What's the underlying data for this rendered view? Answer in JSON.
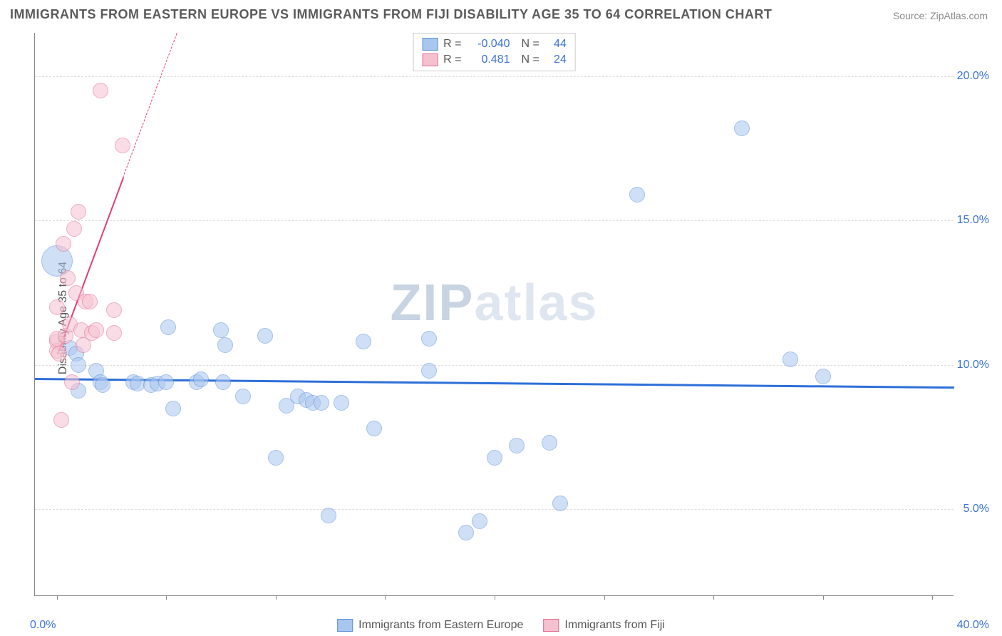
{
  "title": "IMMIGRANTS FROM EASTERN EUROPE VS IMMIGRANTS FROM FIJI DISABILITY AGE 35 TO 64 CORRELATION CHART",
  "source": "Source: ZipAtlas.com",
  "ylabel": "Disability Age 35 to 64",
  "watermark": {
    "prefix": "ZIP",
    "suffix": "atlas"
  },
  "chart": {
    "type": "scatter",
    "background_color": "#ffffff",
    "grid_color": "#dddddd",
    "axis_color": "#888888",
    "tick_label_color": "#3b72d6",
    "label_fontsize": 16,
    "title_fontsize": 18,
    "xlim": [
      -1.0,
      41.0
    ],
    "ylim": [
      2.0,
      21.5
    ],
    "yticks": [
      5.0,
      10.0,
      15.0,
      20.0
    ],
    "ytick_labels": [
      "5.0%",
      "10.0%",
      "15.0%",
      "20.0%"
    ],
    "xtick_positions": [
      0,
      5,
      10,
      15,
      20,
      25,
      30,
      35,
      40
    ],
    "x_label_min": "0.0%",
    "x_label_max": "40.0%",
    "marker_radius": 11,
    "marker_opacity": 0.55,
    "marker_border_width": 1.5,
    "series": [
      {
        "name": "Immigrants from Eastern Europe",
        "fill": "#a9c6ef",
        "stroke": "#5b8fd9",
        "R": "-0.040",
        "N": "44",
        "trend": {
          "y_at_xmin": 9.55,
          "y_at_xmax": 9.25,
          "color": "#2d6fd9",
          "width": 3
        },
        "points": [
          {
            "x": 0.0,
            "y": 13.6,
            "r": 22
          },
          {
            "x": 0.6,
            "y": 10.6
          },
          {
            "x": 0.9,
            "y": 10.4
          },
          {
            "x": 1.0,
            "y": 10.0
          },
          {
            "x": 1.0,
            "y": 9.1
          },
          {
            "x": 1.8,
            "y": 9.8
          },
          {
            "x": 2.0,
            "y": 9.4
          },
          {
            "x": 2.1,
            "y": 9.3
          },
          {
            "x": 3.5,
            "y": 9.4
          },
          {
            "x": 3.7,
            "y": 9.35
          },
          {
            "x": 4.3,
            "y": 9.3
          },
          {
            "x": 4.6,
            "y": 9.35
          },
          {
            "x": 5.0,
            "y": 9.4
          },
          {
            "x": 5.1,
            "y": 11.3
          },
          {
            "x": 5.3,
            "y": 8.5
          },
          {
            "x": 6.4,
            "y": 9.4
          },
          {
            "x": 6.6,
            "y": 9.5
          },
          {
            "x": 7.5,
            "y": 11.2
          },
          {
            "x": 7.6,
            "y": 9.4
          },
          {
            "x": 7.7,
            "y": 10.7
          },
          {
            "x": 8.5,
            "y": 8.9
          },
          {
            "x": 9.5,
            "y": 11.0
          },
          {
            "x": 10.0,
            "y": 6.8
          },
          {
            "x": 10.5,
            "y": 8.6
          },
          {
            "x": 11.0,
            "y": 8.9
          },
          {
            "x": 11.4,
            "y": 8.8
          },
          {
            "x": 11.7,
            "y": 8.7
          },
          {
            "x": 12.1,
            "y": 8.7
          },
          {
            "x": 12.4,
            "y": 4.8
          },
          {
            "x": 13.0,
            "y": 8.7
          },
          {
            "x": 14.0,
            "y": 10.8
          },
          {
            "x": 14.5,
            "y": 7.8
          },
          {
            "x": 17.0,
            "y": 10.9
          },
          {
            "x": 17.0,
            "y": 9.8
          },
          {
            "x": 18.7,
            "y": 4.2
          },
          {
            "x": 19.3,
            "y": 4.6
          },
          {
            "x": 20.0,
            "y": 6.8
          },
          {
            "x": 21.0,
            "y": 7.2
          },
          {
            "x": 22.5,
            "y": 7.3
          },
          {
            "x": 23.0,
            "y": 5.2
          },
          {
            "x": 26.5,
            "y": 15.9
          },
          {
            "x": 31.3,
            "y": 18.2
          },
          {
            "x": 33.5,
            "y": 10.2
          },
          {
            "x": 35.0,
            "y": 9.6
          }
        ]
      },
      {
        "name": "Immigrants from Fiji",
        "fill": "#f5c1d0",
        "stroke": "#e36b93",
        "R": "0.481",
        "N": "24",
        "trend": {
          "x1": 0.0,
          "y1": 10.4,
          "x2_solid": 3.0,
          "y2_solid": 16.5,
          "x2_dash": 6.7,
          "y2_dash": 24.0,
          "color": "#e13b78",
          "width": 2.5
        },
        "points": [
          {
            "x": 0.0,
            "y": 10.5
          },
          {
            "x": 0.0,
            "y": 10.8
          },
          {
            "x": 0.0,
            "y": 10.9
          },
          {
            "x": 0.0,
            "y": 12.0
          },
          {
            "x": 0.1,
            "y": 10.4
          },
          {
            "x": 0.2,
            "y": 8.1
          },
          {
            "x": 0.3,
            "y": 14.2
          },
          {
            "x": 0.4,
            "y": 11.0
          },
          {
            "x": 0.5,
            "y": 13.0
          },
          {
            "x": 0.6,
            "y": 11.4
          },
          {
            "x": 0.7,
            "y": 9.4
          },
          {
            "x": 0.8,
            "y": 14.7
          },
          {
            "x": 0.9,
            "y": 12.5
          },
          {
            "x": 1.0,
            "y": 15.3
          },
          {
            "x": 1.1,
            "y": 11.2
          },
          {
            "x": 1.2,
            "y": 10.7
          },
          {
            "x": 1.3,
            "y": 12.2
          },
          {
            "x": 1.5,
            "y": 12.2
          },
          {
            "x": 1.6,
            "y": 11.1
          },
          {
            "x": 1.8,
            "y": 11.2
          },
          {
            "x": 2.0,
            "y": 19.5
          },
          {
            "x": 2.6,
            "y": 11.1
          },
          {
            "x": 2.6,
            "y": 11.9
          },
          {
            "x": 3.0,
            "y": 17.6
          }
        ]
      }
    ],
    "bottom_legend": [
      {
        "label": "Immigrants from Eastern Europe",
        "fill": "#a9c6ef",
        "stroke": "#5b8fd9"
      },
      {
        "label": "Immigrants from Fiji",
        "fill": "#f5c1d0",
        "stroke": "#e36b93"
      }
    ]
  }
}
